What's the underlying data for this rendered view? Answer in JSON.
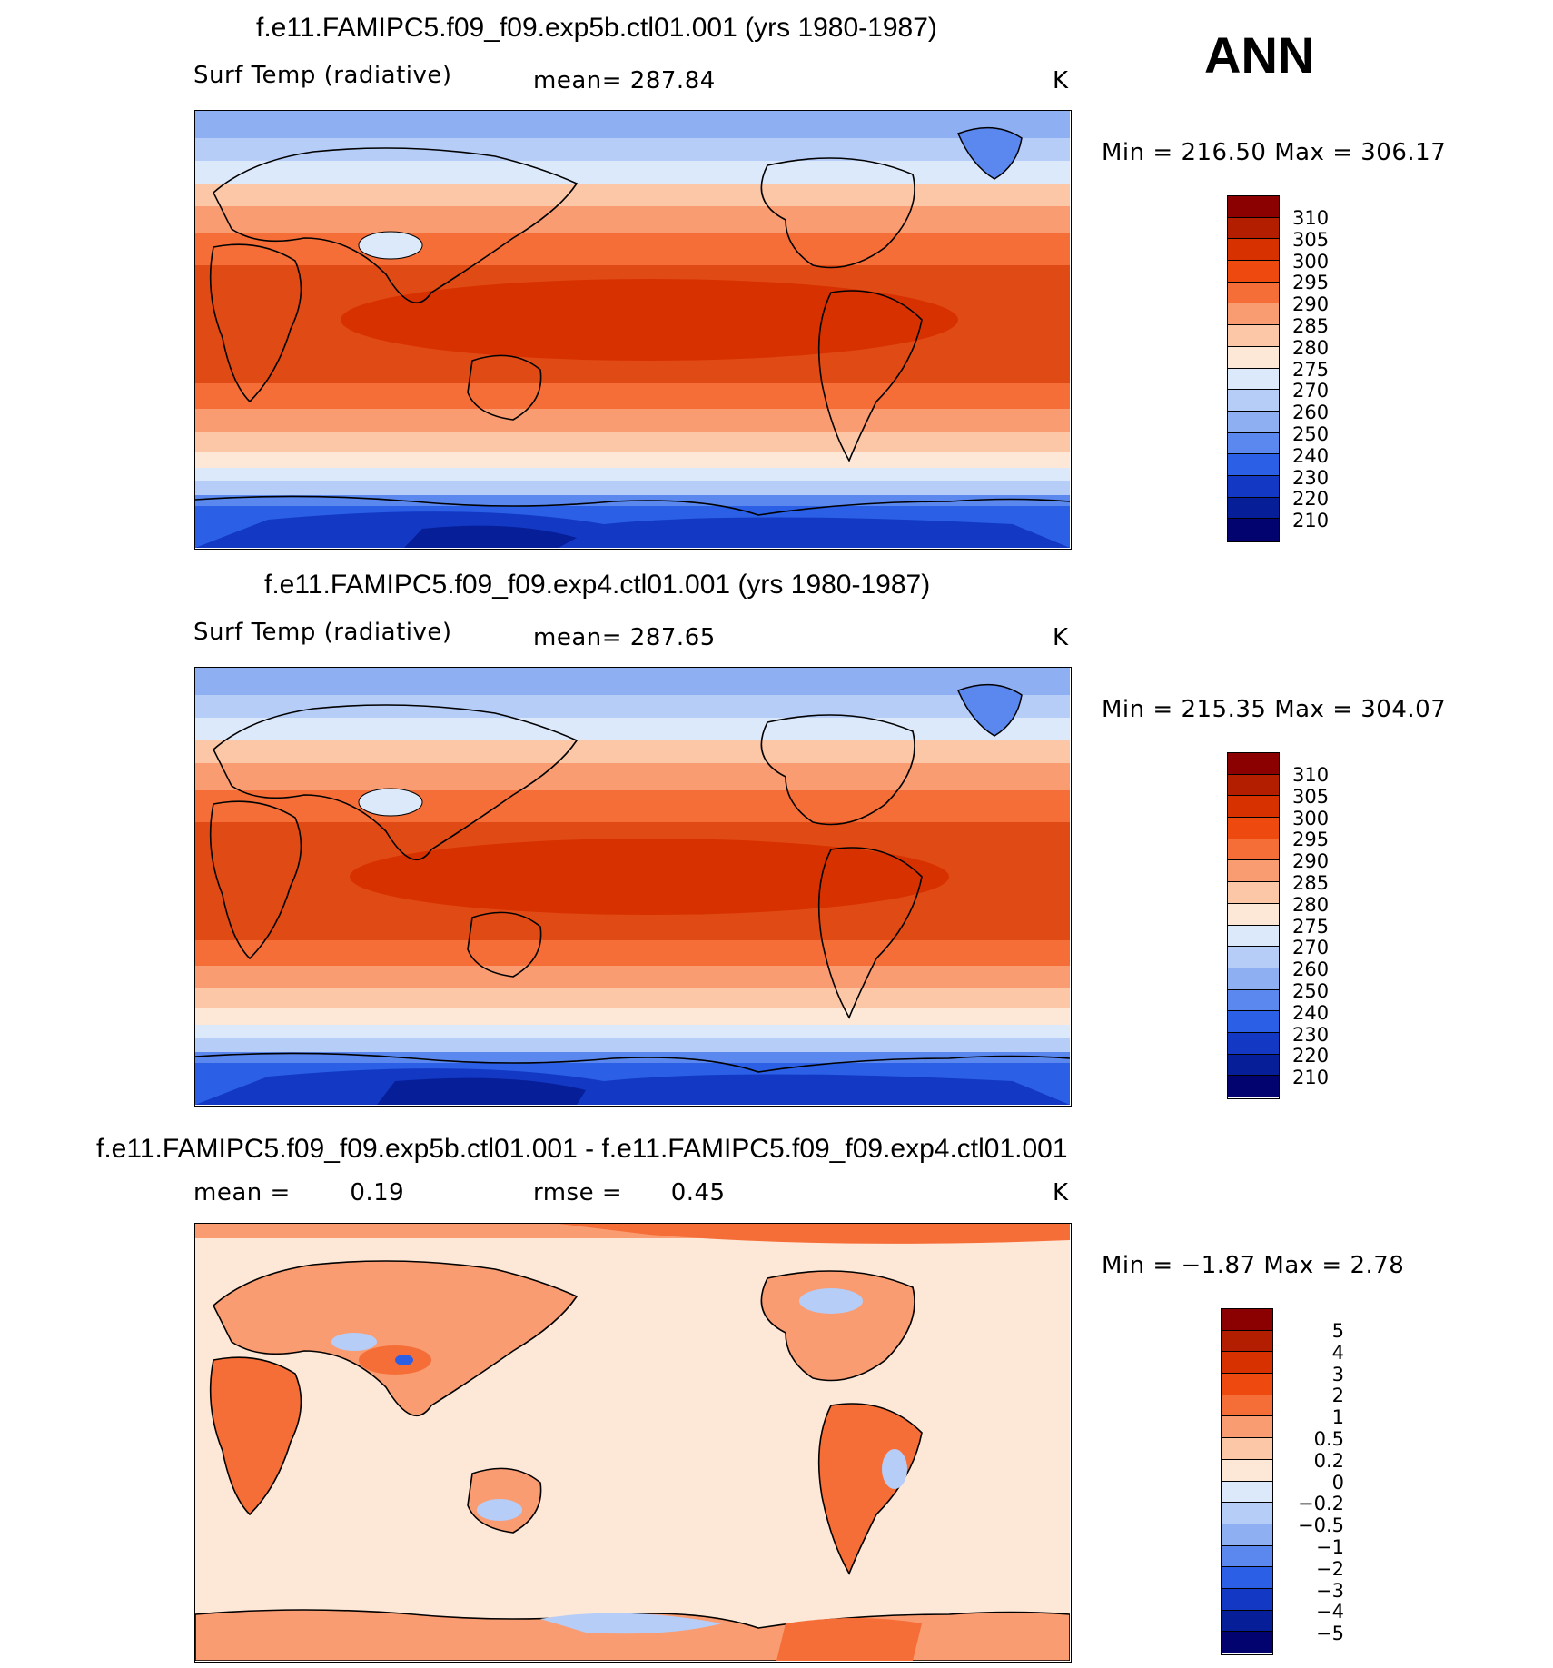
{
  "season": "ANN",
  "units": "K",
  "panels": [
    {
      "title": "f.e11.FAMIPC5.f09_f09.exp5b.ctl01.001 (yrs 1980-1987)",
      "variable": "Surf Temp (radiative)",
      "mean_label": "mean=",
      "mean_value": "287.84",
      "min_max": "Min  =  216.50  Max  =  306.17"
    },
    {
      "title": "f.e11.FAMIPC5.f09_f09.exp4.ctl01.001 (yrs 1980-1987)",
      "variable": "Surf Temp (radiative)",
      "mean_label": "mean=",
      "mean_value": "287.65",
      "min_max": "Min  =  215.35  Max  =  304.07"
    },
    {
      "title": "f.e11.FAMIPC5.f09_f09.exp5b.ctl01.001 - f.e11.FAMIPC5.f09_f09.exp4.ctl01.001",
      "mean_label": "mean  =",
      "mean_value": "0.19",
      "rmse_label": "rmse  =",
      "rmse_value": "0.45",
      "min_max": "Min  =    −1.87  Max  =      2.78"
    }
  ],
  "colorbar_abs": {
    "labels": [
      "310",
      "305",
      "300",
      "295",
      "290",
      "285",
      "280",
      "275",
      "270",
      "260",
      "250",
      "240",
      "230",
      "220",
      "210"
    ],
    "colors": [
      "#8b0000",
      "#b31e00",
      "#d83100",
      "#ee4a10",
      "#f56e38",
      "#f99c72",
      "#fcc7a6",
      "#fde8d8",
      "#dce9fb",
      "#b5cdf7",
      "#8eb0f3",
      "#5a88ef",
      "#2a5fe6",
      "#1238c4",
      "#071e99",
      "#03036f"
    ]
  },
  "colorbar_diff": {
    "labels": [
      "5",
      "4",
      "3",
      "2",
      "1",
      "0.5",
      "0.2",
      "0",
      "−0.2",
      "−0.5",
      "−1",
      "−2",
      "−3",
      "−4",
      "−5"
    ],
    "colors": [
      "#8b0000",
      "#b31e00",
      "#d83100",
      "#ee4a10",
      "#f56e38",
      "#f99c72",
      "#fcc7a6",
      "#fde8d8",
      "#dce9fb",
      "#b5cdf7",
      "#8eb0f3",
      "#5a88ef",
      "#2a5fe6",
      "#1238c4",
      "#071e99",
      "#03036f"
    ]
  }
}
